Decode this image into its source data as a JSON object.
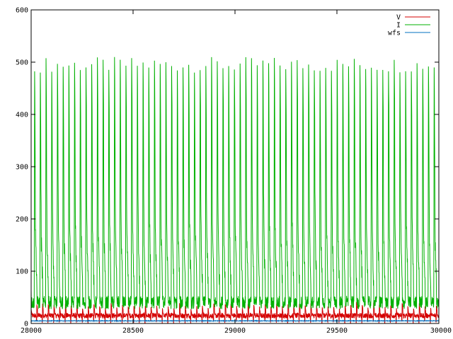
{
  "chart_data": {
    "type": "line",
    "xlim": [
      28000,
      30000
    ],
    "ylim": [
      0,
      600
    ],
    "x_ticks": [
      "28000",
      "28500",
      "29000",
      "29500",
      "30000"
    ],
    "x_tick_values": [
      28000,
      28500,
      29000,
      29500,
      30000
    ],
    "y_ticks": [
      "0",
      "100",
      "200",
      "300",
      "400",
      "500",
      "600"
    ],
    "y_tick_values": [
      0,
      100,
      200,
      300,
      400,
      500,
      600
    ],
    "grid": false,
    "legend": {
      "placement": "top-right",
      "entries": [
        "V",
        "I",
        "wfs"
      ]
    },
    "series": [
      {
        "name": "V",
        "color": "#d40000",
        "pattern": "periodic pulses",
        "x_start": 28000,
        "x_end": 30000,
        "period": 28,
        "baseline": 15,
        "peak_min": 28,
        "peak_max": 40,
        "min": 0
      },
      {
        "name": "I",
        "color": "#00b000",
        "pattern": "periodic spikes",
        "x_start": 28000,
        "x_end": 30000,
        "period": 28,
        "baseline": 35,
        "peak_min": 480,
        "peak_max": 510,
        "first_peak": 28045
      },
      {
        "name": "wfs",
        "color": "#0070c0",
        "pattern": "near-constant",
        "x_start": 28000,
        "x_end": 30000,
        "value": 5
      }
    ]
  }
}
